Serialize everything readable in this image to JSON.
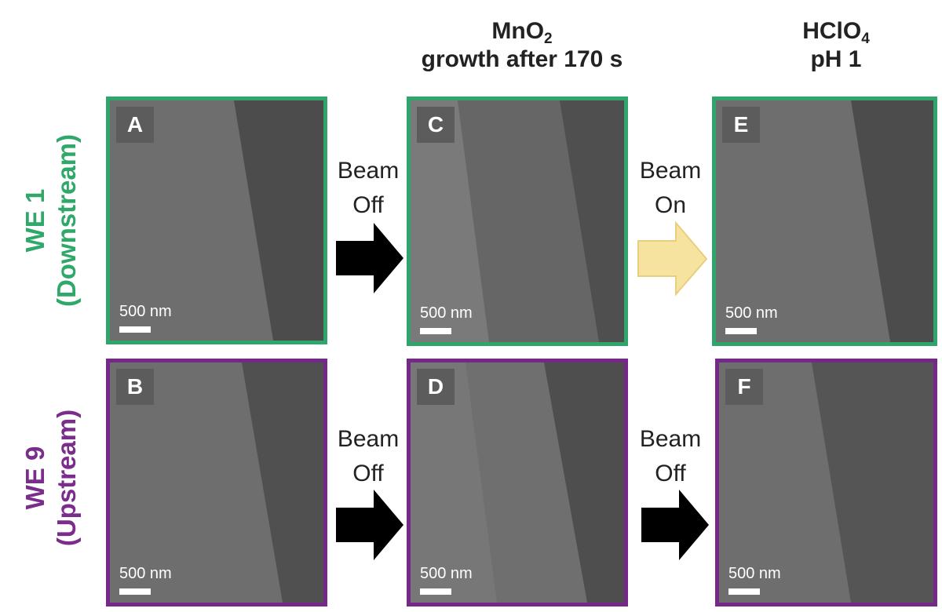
{
  "headers": {
    "middle_line1_main": "MnO",
    "middle_line1_sub": "2",
    "middle_line2": "growth after 170 s",
    "right_line1_main": "HClO",
    "right_line1_sub": "4",
    "right_line2": "pH 1"
  },
  "rows": {
    "top": {
      "line1": "WE 1",
      "line2": "(Downstream)",
      "color": "#2fa86a"
    },
    "bottom": {
      "line1": "WE 9",
      "line2": "(Upstream)",
      "color": "#7a2d8b"
    }
  },
  "panels": [
    {
      "letter": "A",
      "scale": "500 nm"
    },
    {
      "letter": "C",
      "scale": "500 nm"
    },
    {
      "letter": "E",
      "scale": "500 nm"
    },
    {
      "letter": "B",
      "scale": "500 nm"
    },
    {
      "letter": "D",
      "scale": "500 nm"
    },
    {
      "letter": "F",
      "scale": "500 nm"
    }
  ],
  "transitions": {
    "top_left": {
      "line1": "Beam",
      "line2": "Off",
      "arrow_color": "#000000"
    },
    "top_right": {
      "line1": "Beam",
      "line2": "On",
      "arrow_color": "#f7e3a0"
    },
    "bottom_left": {
      "line1": "Beam",
      "line2": "Off",
      "arrow_color": "#000000"
    },
    "bottom_right": {
      "line1": "Beam",
      "line2": "Off",
      "arrow_color": "#000000"
    }
  }
}
